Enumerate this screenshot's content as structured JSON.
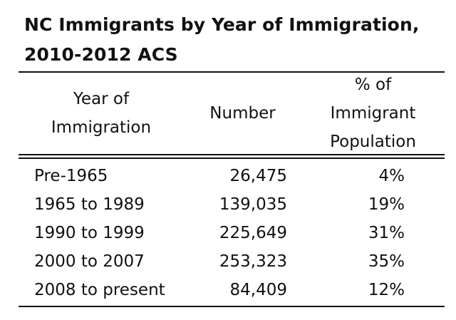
{
  "title_line1": "NC Immigrants by Year of Immigration,",
  "title_line2": "2010-2012 ACS",
  "chart_data": {
    "type": "table",
    "columns": [
      "Year of\nImmigration",
      "Number",
      "% of\nImmigrant\nPopulation"
    ],
    "rows": [
      {
        "period": "Pre-1965",
        "number": "26,475",
        "percent": "4%"
      },
      {
        "period": "1965 to 1989",
        "number": "139,035",
        "percent": "19%"
      },
      {
        "period": "1990 to 1999",
        "number": "225,649",
        "percent": "31%"
      },
      {
        "period": "2000 to 2007",
        "number": "253,323",
        "percent": "35%"
      },
      {
        "period": "2008 to present",
        "number": "84,409",
        "percent": "12%"
      }
    ]
  }
}
